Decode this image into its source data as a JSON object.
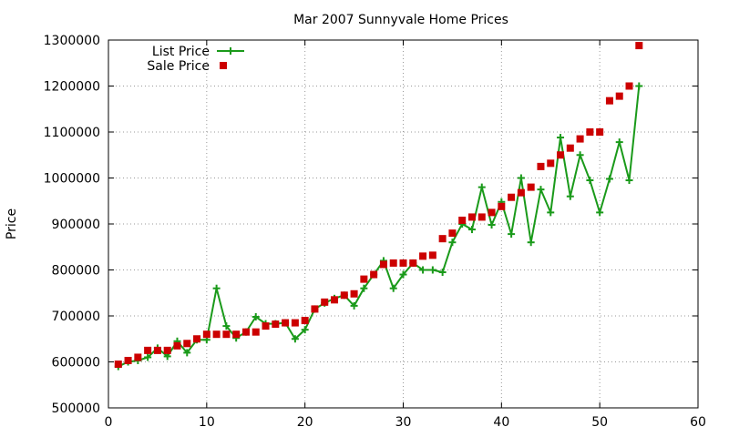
{
  "chart_data": {
    "type": "line",
    "title": "Mar 2007 Sunnyvale Home Prices",
    "xlabel": "",
    "ylabel": "Price",
    "xlim": [
      0,
      60
    ],
    "ylim": [
      500000,
      1300000
    ],
    "xticks": [
      0,
      10,
      20,
      30,
      40,
      50,
      60
    ],
    "yticks": [
      500000,
      600000,
      700000,
      800000,
      900000,
      1000000,
      1100000,
      1200000,
      1300000
    ],
    "grid": true,
    "legend": "top-left",
    "series": [
      {
        "name": "List Price",
        "style": "line-plus",
        "color": "#1a9a1a",
        "x": [
          1,
          2,
          3,
          4,
          5,
          6,
          7,
          8,
          9,
          10,
          11,
          12,
          13,
          14,
          15,
          16,
          17,
          18,
          19,
          20,
          21,
          22,
          23,
          24,
          25,
          26,
          27,
          28,
          29,
          30,
          31,
          32,
          33,
          34,
          35,
          36,
          37,
          38,
          39,
          40,
          41,
          42,
          43,
          44,
          45,
          46,
          47,
          48,
          49,
          50,
          51,
          52,
          53,
          54
        ],
        "y": [
          590000,
          600000,
          603000,
          610000,
          630000,
          612000,
          645000,
          620000,
          648000,
          648000,
          760000,
          678000,
          652000,
          665000,
          698000,
          683000,
          683000,
          685000,
          650000,
          670000,
          715000,
          728000,
          738000,
          745000,
          722000,
          760000,
          790000,
          820000,
          760000,
          790000,
          815000,
          800000,
          800000,
          795000,
          860000,
          900000,
          888000,
          980000,
          898000,
          948000,
          878000,
          1000000,
          860000,
          975000,
          925000,
          1088000,
          960000,
          1050000,
          995000,
          925000,
          998000,
          1078000,
          995000,
          1200000
        ]
      },
      {
        "name": "Sale Price",
        "style": "square",
        "color": "#cc0000",
        "x": [
          1,
          2,
          3,
          4,
          5,
          6,
          7,
          8,
          9,
          10,
          11,
          12,
          13,
          14,
          15,
          16,
          17,
          18,
          19,
          20,
          21,
          22,
          23,
          24,
          25,
          26,
          27,
          28,
          29,
          30,
          31,
          32,
          33,
          34,
          35,
          36,
          37,
          38,
          39,
          40,
          41,
          42,
          43,
          44,
          45,
          46,
          47,
          48,
          49,
          50,
          51,
          52,
          53,
          54
        ],
        "y": [
          595000,
          603000,
          610000,
          625000,
          625000,
          625000,
          635000,
          640000,
          650000,
          660000,
          660000,
          660000,
          660000,
          665000,
          665000,
          678000,
          682000,
          685000,
          685000,
          690000,
          715000,
          730000,
          735000,
          745000,
          748000,
          780000,
          790000,
          812000,
          815000,
          815000,
          815000,
          830000,
          832000,
          868000,
          880000,
          908000,
          915000,
          915000,
          925000,
          938000,
          958000,
          968000,
          980000,
          1025000,
          1032000,
          1050000,
          1065000,
          1085000,
          1100000,
          1100000,
          1168000,
          1178000,
          1200000,
          1288000
        ]
      }
    ]
  }
}
